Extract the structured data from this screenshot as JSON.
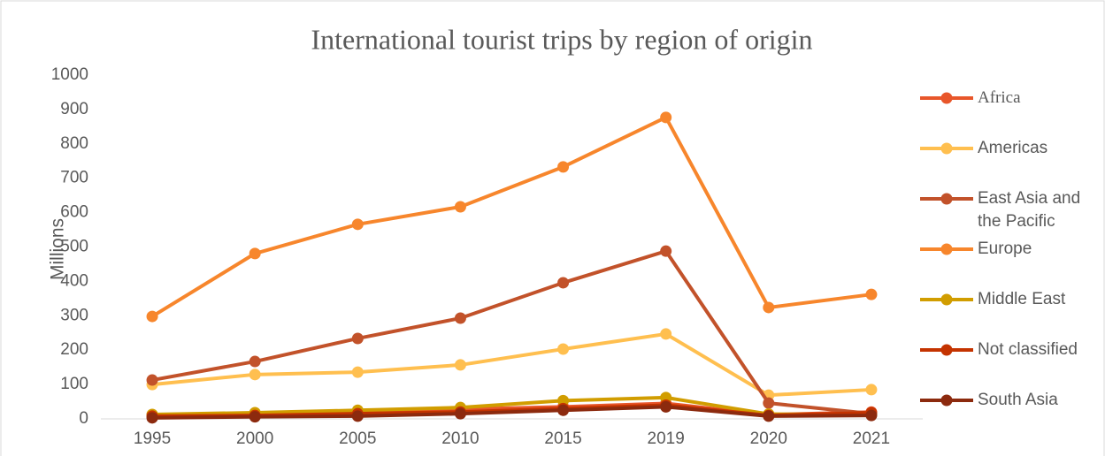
{
  "chart_data": {
    "type": "line",
    "title": "International tourist trips by region of origin",
    "y_label": "Millions",
    "categories": [
      "1995",
      "2000",
      "2005",
      "2010",
      "2015",
      "2019",
      "2020",
      "2021"
    ],
    "ylim": [
      0,
      1000
    ],
    "yticks": [
      0,
      100,
      200,
      300,
      400,
      500,
      600,
      700,
      800,
      900,
      1000
    ],
    "legend": "right",
    "series": [
      {
        "name": "Africa",
        "color": "#e8562a",
        "values": [
          12,
          15,
          20,
          28,
          35,
          45,
          12,
          20
        ]
      },
      {
        "name": "Americas",
        "color": "#ffbf4f",
        "values": [
          100,
          129,
          136,
          157,
          203,
          247,
          69,
          85
        ]
      },
      {
        "name": "East Asia and the Pacific",
        "color": "#c2522a",
        "values": [
          113,
          167,
          234,
          293,
          396,
          488,
          46,
          15
        ]
      },
      {
        "name": "Europe",
        "color": "#f7862c",
        "values": [
          298,
          481,
          566,
          617,
          733,
          877,
          324,
          362
        ]
      },
      {
        "name": "Middle East",
        "color": "#d19d00",
        "values": [
          13,
          18,
          25,
          33,
          53,
          62,
          14,
          12
        ]
      },
      {
        "name": "Not classified",
        "color": "#c43300",
        "values": [
          8,
          10,
          15,
          20,
          30,
          40,
          10,
          18
        ]
      },
      {
        "name": "South Asia",
        "color": "#8c2a0e",
        "values": [
          3,
          6,
          8,
          15,
          25,
          35,
          8,
          10
        ]
      }
    ]
  }
}
